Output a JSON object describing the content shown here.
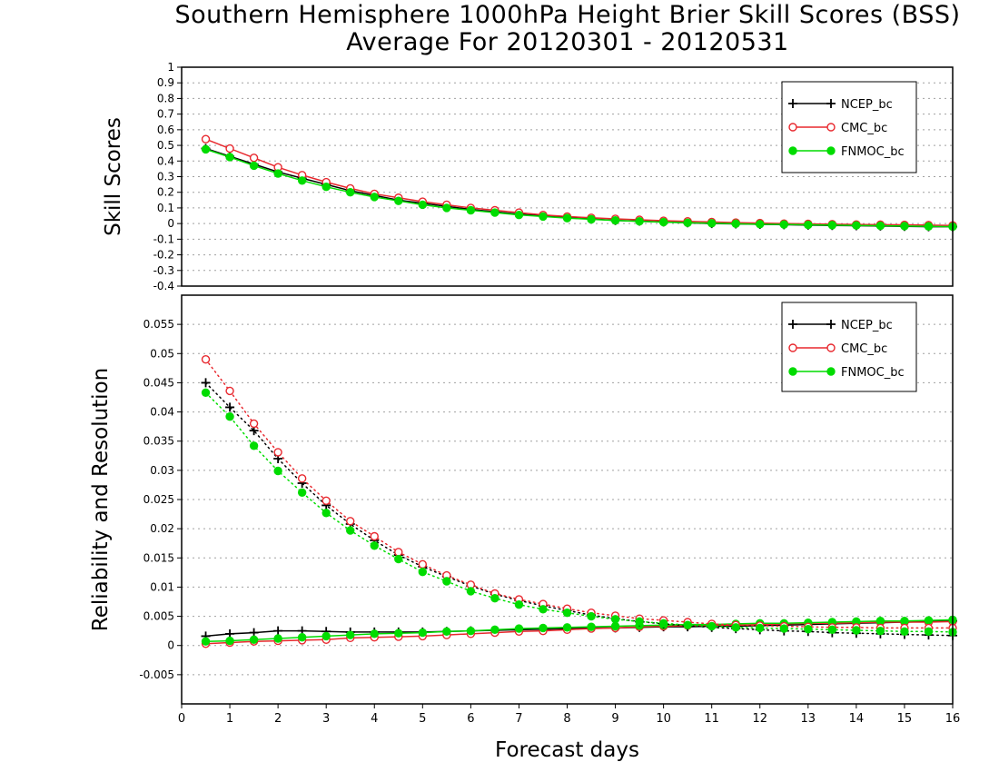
{
  "title": {
    "line1": "Southern Hemisphere 1000hPa Height Brier Skill Scores (BSS)",
    "line2": "Average For 20120301 - 20120531"
  },
  "colors": {
    "ncep": "#000000",
    "cmc": "#e8282e",
    "fnmoc": "#00dc00",
    "grid": "#a0a0a0"
  },
  "chart_data": [
    {
      "type": "line",
      "title": "",
      "xlabel": "",
      "ylabel": "Skill Scores",
      "xlim": [
        0,
        16
      ],
      "ylim": [
        -0.4,
        1
      ],
      "yticks": [
        "1",
        "0.9",
        "0.8",
        "0.7",
        "0.6",
        "0.5",
        "0.4",
        "0.3",
        "0.2",
        "0.1",
        "0",
        "-0.1",
        "-0.2",
        "-0.3",
        "-0.4"
      ],
      "grid": true,
      "legend_position": "top-right",
      "x": [
        0.5,
        1,
        1.5,
        2,
        2.5,
        3,
        3.5,
        4,
        4.5,
        5,
        5.5,
        6,
        6.5,
        7,
        7.5,
        8,
        8.5,
        9,
        9.5,
        10,
        10.5,
        11,
        11.5,
        12,
        12.5,
        13,
        13.5,
        14,
        14.5,
        15,
        15.5,
        16
      ],
      "series": [
        {
          "name": "NCEP_bc",
          "color": "#000000",
          "marker": "plus",
          "style": "solid",
          "values": [
            0.48,
            0.43,
            0.38,
            0.33,
            0.29,
            0.25,
            0.21,
            0.18,
            0.15,
            0.13,
            0.11,
            0.09,
            0.075,
            0.06,
            0.05,
            0.04,
            0.03,
            0.02,
            0.015,
            0.01,
            0.005,
            0.0,
            -0.002,
            -0.005,
            -0.007,
            -0.01,
            -0.012,
            -0.014,
            -0.016,
            -0.018,
            -0.02,
            -0.02
          ]
        },
        {
          "name": "CMC_bc",
          "color": "#e8282e",
          "marker": "open-circle",
          "style": "solid",
          "values": [
            0.54,
            0.48,
            0.42,
            0.36,
            0.31,
            0.265,
            0.225,
            0.19,
            0.165,
            0.14,
            0.12,
            0.1,
            0.085,
            0.07,
            0.055,
            0.045,
            0.037,
            0.03,
            0.024,
            0.018,
            0.014,
            0.01,
            0.006,
            0.003,
            0.0,
            -0.002,
            -0.004,
            -0.006,
            -0.007,
            -0.008,
            -0.01,
            -0.012
          ]
        },
        {
          "name": "FNMOC_bc",
          "color": "#00dc00",
          "marker": "filled-circle",
          "style": "solid",
          "values": [
            0.475,
            0.425,
            0.37,
            0.32,
            0.275,
            0.235,
            0.2,
            0.17,
            0.145,
            0.12,
            0.1,
            0.085,
            0.07,
            0.055,
            0.045,
            0.035,
            0.027,
            0.02,
            0.014,
            0.009,
            0.005,
            0.002,
            -0.001,
            -0.004,
            -0.006,
            -0.008,
            -0.01,
            -0.012,
            -0.014,
            -0.016,
            -0.018,
            -0.02
          ]
        }
      ]
    },
    {
      "type": "line",
      "title": "",
      "xlabel": "Forecast days",
      "ylabel": "Reliability and Resolution",
      "xlim": [
        0,
        16
      ],
      "ylim": [
        -0.01,
        0.06
      ],
      "xticks": [
        "0",
        "1",
        "2",
        "3",
        "4",
        "5",
        "6",
        "7",
        "8",
        "9",
        "10",
        "11",
        "12",
        "13",
        "14",
        "15",
        "16"
      ],
      "yticks": [
        "0.055",
        "0.05",
        "0.045",
        "0.04",
        "0.035",
        "0.03",
        "0.025",
        "0.02",
        "0.015",
        "0.01",
        "0.005",
        "0",
        "-0.005"
      ],
      "grid": true,
      "legend_position": "top-right",
      "x": [
        0.5,
        1,
        1.5,
        2,
        2.5,
        3,
        3.5,
        4,
        4.5,
        5,
        5.5,
        6,
        6.5,
        7,
        7.5,
        8,
        8.5,
        9,
        9.5,
        10,
        10.5,
        11,
        11.5,
        12,
        12.5,
        13,
        13.5,
        14,
        14.5,
        15,
        15.5,
        16
      ],
      "series": [
        {
          "name": "NCEP_bc",
          "color": "#000000",
          "marker": "plus",
          "style": "solid",
          "values": [
            0.0016,
            0.002,
            0.0022,
            0.0025,
            0.0025,
            0.0024,
            0.0023,
            0.0023,
            0.0023,
            0.0023,
            0.0024,
            0.0025,
            0.0026,
            0.0027,
            0.0028,
            0.0029,
            0.003,
            0.003,
            0.0031,
            0.0032,
            0.0032,
            0.0033,
            0.0033,
            0.0034,
            0.0035,
            0.0036,
            0.0037,
            0.0038,
            0.0039,
            0.004,
            0.0041,
            0.0042
          ]
        },
        {
          "name": "CMC_bc",
          "color": "#e8282e",
          "marker": "open-circle",
          "style": "solid",
          "values": [
            0.0003,
            0.0005,
            0.0007,
            0.0008,
            0.0009,
            0.001,
            0.0013,
            0.0014,
            0.0015,
            0.0016,
            0.0018,
            0.002,
            0.0022,
            0.0024,
            0.0025,
            0.0027,
            0.0029,
            0.003,
            0.0032,
            0.0033,
            0.0034,
            0.0035,
            0.0035,
            0.0036,
            0.0037,
            0.0038,
            0.0038,
            0.0039,
            0.004,
            0.004,
            0.004,
            0.0041
          ]
        },
        {
          "name": "FNMOC_bc",
          "color": "#00dc00",
          "marker": "filled-circle",
          "style": "solid",
          "values": [
            0.0007,
            0.0008,
            0.001,
            0.0012,
            0.0014,
            0.0016,
            0.0018,
            0.002,
            0.0021,
            0.0022,
            0.0024,
            0.0025,
            0.0027,
            0.0029,
            0.003,
            0.0031,
            0.0032,
            0.0033,
            0.0034,
            0.0035,
            0.0036,
            0.0036,
            0.0037,
            0.0038,
            0.0038,
            0.0039,
            0.004,
            0.0041,
            0.0042,
            0.0042,
            0.0043,
            0.0044
          ]
        },
        {
          "name": "",
          "color": "#000000",
          "marker": "plus",
          "style": "dotted",
          "values": [
            0.045,
            0.0408,
            0.0368,
            0.032,
            0.0278,
            0.024,
            0.0208,
            0.018,
            0.0155,
            0.0135,
            0.0118,
            0.0102,
            0.0088,
            0.0077,
            0.0068,
            0.006,
            0.0052,
            0.0046,
            0.0041,
            0.0037,
            0.0034,
            0.0031,
            0.0029,
            0.0027,
            0.0025,
            0.0024,
            0.0022,
            0.0021,
            0.002,
            0.0019,
            0.0018,
            0.0017
          ]
        },
        {
          "name": "",
          "color": "#e8282e",
          "marker": "open-circle",
          "style": "dotted",
          "values": [
            0.049,
            0.0436,
            0.038,
            0.0331,
            0.0286,
            0.0248,
            0.0213,
            0.0187,
            0.016,
            0.0139,
            0.012,
            0.0104,
            0.0089,
            0.0079,
            0.0071,
            0.0063,
            0.0056,
            0.0051,
            0.0046,
            0.0043,
            0.004,
            0.0037,
            0.0035,
            0.0034,
            0.0033,
            0.0032,
            0.0031,
            0.0031,
            0.003,
            0.003,
            0.003,
            0.003
          ]
        },
        {
          "name": "",
          "color": "#00dc00",
          "marker": "filled-circle",
          "style": "dotted",
          "values": [
            0.0433,
            0.0392,
            0.0342,
            0.0299,
            0.0262,
            0.0227,
            0.0197,
            0.0171,
            0.0148,
            0.0126,
            0.011,
            0.0093,
            0.0081,
            0.007,
            0.0062,
            0.0056,
            0.005,
            0.0045,
            0.0041,
            0.0038,
            0.0035,
            0.0033,
            0.0031,
            0.003,
            0.0029,
            0.0028,
            0.0027,
            0.0026,
            0.0025,
            0.0024,
            0.0024,
            0.0023
          ]
        }
      ]
    }
  ]
}
